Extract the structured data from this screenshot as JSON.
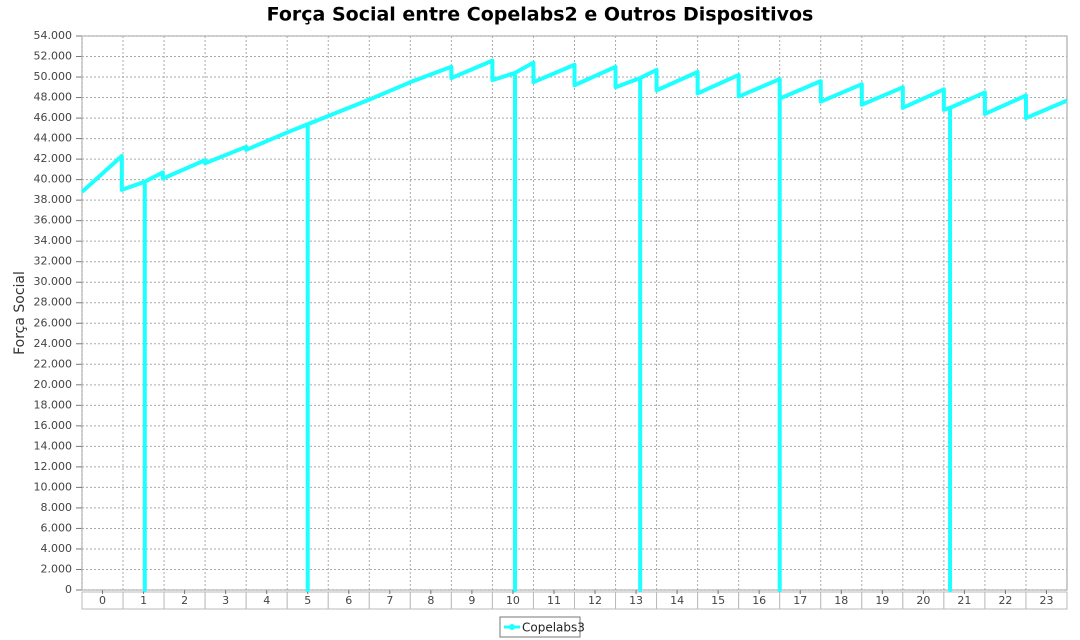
{
  "chart_data": {
    "type": "line",
    "title": "Força Social entre Copelabs2 e Outros Dispositivos",
    "y_label": "Força Social",
    "x": [
      -0.5,
      0.47,
      0.47,
      1.03,
      1.03,
      1.03,
      1.47,
      1.47,
      2.5,
      2.5,
      3.5,
      3.5,
      4.5,
      5.0,
      5.0,
      5.0,
      5.5,
      6.5,
      7.5,
      8.5,
      8.5,
      9.5,
      9.5,
      10.05,
      10.05,
      10.05,
      10.5,
      10.5,
      11.5,
      11.5,
      12.5,
      12.5,
      13.1,
      13.1,
      13.1,
      13.5,
      13.5,
      14.5,
      14.5,
      15.5,
      15.5,
      16.5,
      16.5,
      16.5,
      17.5,
      17.5,
      18.5,
      18.5,
      19.5,
      19.5,
      20.5,
      20.5,
      20.65,
      20.65,
      20.65,
      21.5,
      21.5,
      22.5,
      22.5,
      23.5
    ],
    "series": [
      {
        "name": "Copelabs3",
        "color": "#1effff",
        "values": [
          38800,
          42300,
          39000,
          39800,
          0,
          39800,
          40700,
          40100,
          41900,
          41600,
          43200,
          42900,
          44600,
          45400,
          0,
          45400,
          46200,
          47800,
          49500,
          51000,
          49900,
          51600,
          49700,
          50400,
          0,
          50400,
          51400,
          49500,
          51200,
          49200,
          51000,
          49000,
          49900,
          0,
          49900,
          50700,
          48700,
          50500,
          48400,
          50200,
          48100,
          49800,
          0,
          47900,
          49600,
          47600,
          49300,
          47300,
          49000,
          47000,
          48800,
          46800,
          47000,
          0,
          47000,
          48500,
          46400,
          48200,
          46000,
          47700
        ]
      }
    ],
    "xlim": [
      -0.5,
      23.5
    ],
    "xticks": [
      0,
      1,
      2,
      3,
      4,
      5,
      6,
      7,
      8,
      9,
      10,
      11,
      12,
      13,
      14,
      15,
      16,
      17,
      18,
      19,
      20,
      21,
      22,
      23
    ],
    "ylim": [
      0,
      54000
    ],
    "yticks": [
      0,
      {
        "value": 2000,
        "label": "2.000"
      },
      {
        "value": 4000,
        "label": "4.000"
      },
      {
        "value": 6000,
        "label": "6.000"
      },
      {
        "value": 8000,
        "label": "8.000"
      },
      {
        "value": 10000,
        "label": "10.000"
      },
      {
        "value": 12000,
        "label": "12.000"
      },
      {
        "value": 14000,
        "label": "14.000"
      },
      {
        "value": 16000,
        "label": "16.000"
      },
      {
        "value": 18000,
        "label": "18.000"
      },
      {
        "value": 20000,
        "label": "20.000"
      },
      {
        "value": 22000,
        "label": "22.000"
      },
      {
        "value": 24000,
        "label": "24.000"
      },
      {
        "value": 26000,
        "label": "26.000"
      },
      {
        "value": 28000,
        "label": "28.000"
      },
      {
        "value": 30000,
        "label": "30.000"
      },
      {
        "value": 32000,
        "label": "32.000"
      },
      {
        "value": 34000,
        "label": "34.000"
      },
      {
        "value": 36000,
        "label": "36.000"
      },
      {
        "value": 38000,
        "label": "38.000"
      },
      {
        "value": 40000,
        "label": "40.000"
      },
      {
        "value": 42000,
        "label": "42.000"
      },
      {
        "value": 44000,
        "label": "44.000"
      },
      {
        "value": 46000,
        "label": "46.000"
      },
      {
        "value": 48000,
        "label": "48.000"
      },
      {
        "value": 50000,
        "label": "50.000"
      },
      {
        "value": 52000,
        "label": "52.000"
      },
      {
        "value": 54000,
        "label": "54.000"
      }
    ],
    "grid": true
  }
}
